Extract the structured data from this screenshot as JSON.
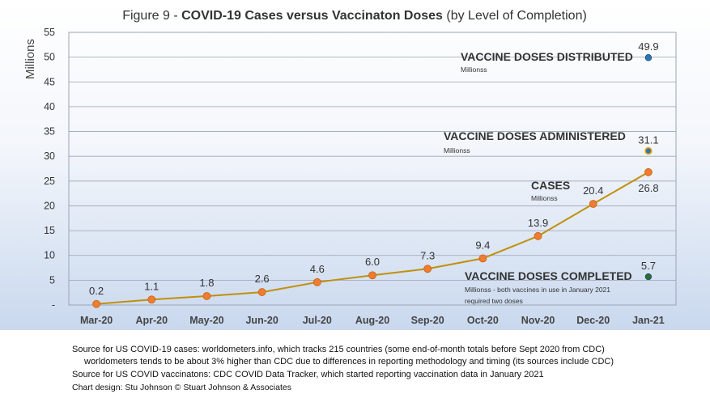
{
  "chart_data": {
    "type": "line",
    "title": {
      "prefix": "Figure 9 - ",
      "bold": "COVID-19 Cases versus Vaccinaton Doses",
      "suffix": " (by Level of Completion)"
    },
    "ylabel": "Millions",
    "ylim": [
      0,
      55
    ],
    "yticks": [
      "-",
      "5",
      "10",
      "15",
      "20",
      "25",
      "30",
      "35",
      "40",
      "45",
      "50",
      "55"
    ],
    "grid": true,
    "categories": [
      "Mar-20",
      "Apr-20",
      "May-20",
      "Jun-20",
      "Jul-20",
      "Aug-20",
      "Sep-20",
      "Oct-20",
      "Nov-20",
      "Dec-20",
      "Jan-21"
    ],
    "series": [
      {
        "name": "CASES",
        "sublabel": "Millionss",
        "values": [
          0.2,
          1.1,
          1.8,
          2.6,
          4.6,
          6.0,
          7.3,
          9.4,
          13.9,
          20.4,
          26.8
        ],
        "labels": [
          "0.2",
          "1.1",
          "1.8",
          "2.6",
          "4.6",
          "6.0",
          "7.3",
          "9.4",
          "13.9",
          "20.4",
          "26.8"
        ],
        "line_color": "#c0900a",
        "marker_color": "#ed7d31"
      }
    ],
    "points": [
      {
        "name": "VACCINE DOSES DISTRIBUTED",
        "sublabel": "Millionss",
        "category": "Jan-21",
        "value": 49.9,
        "label": "49.9",
        "color": "#2e75b6"
      },
      {
        "name": "VACCINE DOSES ADMINISTERED",
        "sublabel": "Millionss",
        "category": "Jan-21",
        "value": 31.1,
        "label": "31.1",
        "color": "#2e75b6",
        "edge_color": "#e0a000"
      },
      {
        "name": "VACCINE DOSES COMPLETED",
        "sublabel": "Millionss - both vaccines in use in January 2021",
        "sublabel2": "required two doses",
        "category": "Jan-21",
        "value": 5.7,
        "label": "5.7",
        "color": "#2e6b2e"
      }
    ]
  },
  "footer": {
    "line1": "Source for US COVID-19 cases: worldometers.info, which tracks 215 countries  (some end-of-month totals before Sept 2020 from CDC)",
    "line2": "worldometers tends to be about 3% higher than CDC due to differences in reporting methodology and timing (its sources include CDC)",
    "line3": "Source for US COVID vaccinatons: CDC COVID Data Tracker, which started reporting vaccination data in January 2021",
    "line4": "Chart design: Stu Johnson © Stuart Johnson & Associates"
  }
}
